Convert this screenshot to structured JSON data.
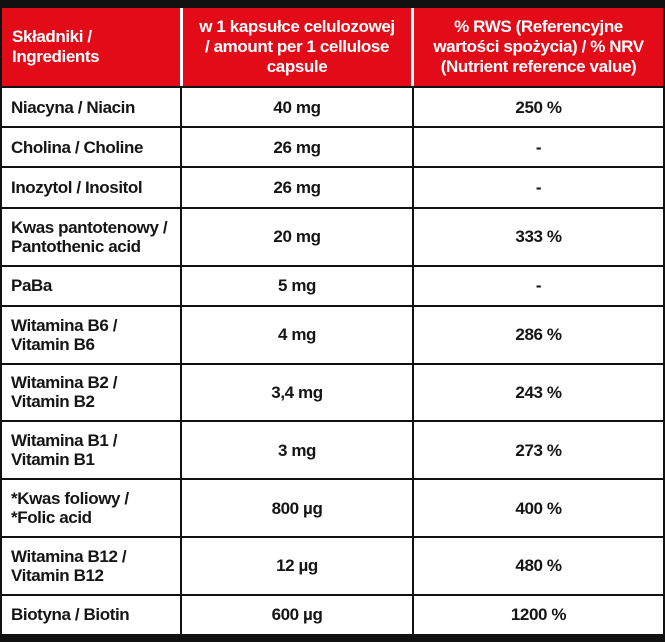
{
  "table": {
    "colors": {
      "header_bg": "#e30b17",
      "header_text": "#ffffff",
      "border": "#111111",
      "body_text": "#151515"
    },
    "header": {
      "col1_lines": [
        "Składniki /",
        "Ingredients"
      ],
      "col2_lines": [
        "w 1 kapsułce celulozowej",
        "/ amount per 1 cellulose",
        "capsule"
      ],
      "col3_lines": [
        "% RWS (Referencyjne",
        "wartości spożycia) / % NRV",
        "(Nutrient reference value)"
      ]
    },
    "rows": [
      {
        "ingredient": [
          "Niacyna / Niacin"
        ],
        "amount": "40 mg",
        "rws": "250 %"
      },
      {
        "ingredient": [
          "Cholina / Choline"
        ],
        "amount": "26 mg",
        "rws": "-"
      },
      {
        "ingredient": [
          "Inozytol / Inositol"
        ],
        "amount": "26 mg",
        "rws": "-"
      },
      {
        "ingredient": [
          "Kwas pantotenowy /",
          "Pantothenic acid"
        ],
        "amount": "20 mg",
        "rws": "333 %"
      },
      {
        "ingredient": [
          "PaBa"
        ],
        "amount": "5 mg",
        "rws": "-"
      },
      {
        "ingredient": [
          "Witamina B6 /",
          "Vitamin B6"
        ],
        "amount": "4 mg",
        "rws": "286 %"
      },
      {
        "ingredient": [
          "Witamina B2 /",
          "Vitamin B2"
        ],
        "amount": "3,4 mg",
        "rws": "243 %"
      },
      {
        "ingredient": [
          "Witamina B1 /",
          "Vitamin B1"
        ],
        "amount": "3 mg",
        "rws": "273 %"
      },
      {
        "ingredient": [
          "*Kwas foliowy /",
          "*Folic acid"
        ],
        "amount": "800 µg",
        "rws": "400 %"
      },
      {
        "ingredient": [
          "Witamina B12 /",
          "Vitamin B12"
        ],
        "amount": "12 µg",
        "rws": "480 %"
      },
      {
        "ingredient": [
          "Biotyna / Biotin"
        ],
        "amount": "600 µg",
        "rws": "1200 %"
      }
    ]
  }
}
